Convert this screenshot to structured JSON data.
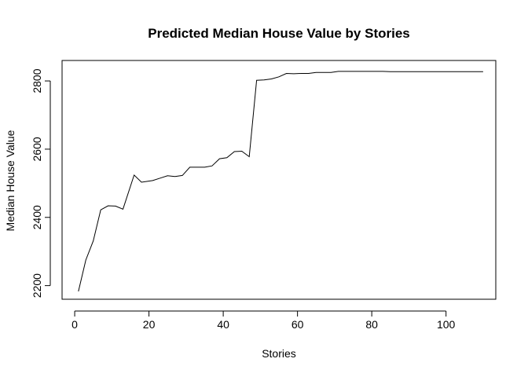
{
  "chart_data": {
    "type": "line",
    "title": "Predicted Median House Value by Stories",
    "xlabel": "Stories",
    "ylabel": "Median House Value",
    "xlim": [
      -3.4,
      113.4
    ],
    "ylim": [
      2160,
      2860
    ],
    "xticks": [
      0,
      20,
      40,
      60,
      80,
      100
    ],
    "yticks": [
      2200,
      2400,
      2600,
      2800
    ],
    "grid": false,
    "series": [
      {
        "x": [
          1,
          3,
          5,
          7,
          9,
          11,
          13,
          16,
          18,
          21,
          23,
          25,
          27,
          29,
          31,
          33,
          35,
          37,
          39,
          41,
          43,
          45,
          47,
          49,
          51,
          53,
          55,
          57,
          59,
          61,
          63,
          65,
          67,
          69,
          71,
          73,
          75,
          77,
          79,
          81,
          83,
          85,
          87,
          90,
          95,
          100,
          105,
          110
        ],
        "y": [
          2183,
          2275,
          2331,
          2422,
          2434,
          2433,
          2424,
          2524,
          2503,
          2508,
          2515,
          2522,
          2520,
          2523,
          2547,
          2547,
          2547,
          2551,
          2572,
          2575,
          2593,
          2594,
          2578,
          2802,
          2803,
          2806,
          2812,
          2822,
          2821,
          2822,
          2822,
          2825,
          2825,
          2825,
          2828,
          2828,
          2828,
          2828,
          2828,
          2828,
          2828,
          2827,
          2827,
          2827,
          2827,
          2827,
          2827,
          2827
        ]
      }
    ]
  }
}
